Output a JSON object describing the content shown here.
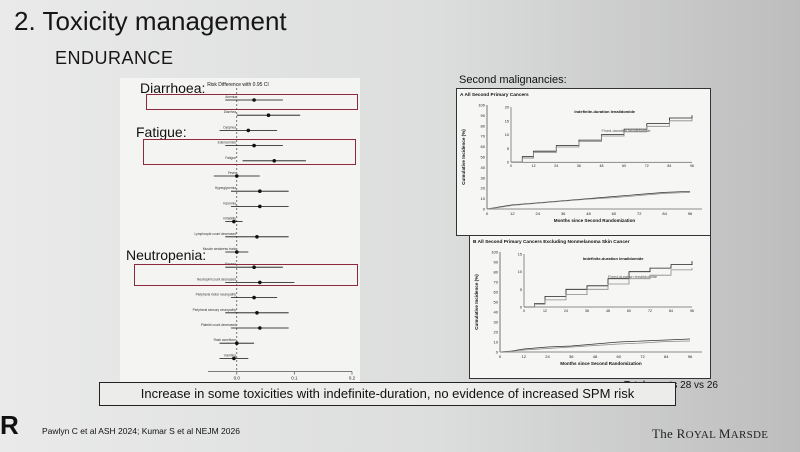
{
  "slide": {
    "title": "2. Toxicity management",
    "subtitle": "ENDURANCE",
    "conclusion": "Increase in some toxicities with indefinite-duration, no evidence of increased SPM risk",
    "references": "Pawlyn C et al ASH 2024; Kumar S et al NEJM 2026",
    "logo_letter": "R",
    "brand_pre": "The ",
    "brand_big": "R",
    "brand_small": "OYAL ",
    "brand_big2": "M",
    "brand_small2": "ARSDE"
  },
  "forest": {
    "header": "Risk Difference with 0.95 CI",
    "axis_label": "Risk Diff Indefinite-Fixed (95% CI)",
    "tick_labels": [
      "0.0",
      "0.1",
      "0.2"
    ],
    "callouts": {
      "diarrhoea": "Diarrhoea:",
      "fatigue": "Fatigue:",
      "neutropenia": "Neutropenia:"
    },
    "rows": [
      {
        "label": "Anemia",
        "est": 0.03,
        "lo": -0.02,
        "hi": 0.08
      },
      {
        "label": "Diarrhea",
        "est": 0.055,
        "lo": 0.0,
        "hi": 0.11
      },
      {
        "label": "Dyspnea",
        "est": 0.02,
        "lo": -0.03,
        "hi": 0.07
      },
      {
        "label": "Edema limbs",
        "est": 0.03,
        "lo": -0.02,
        "hi": 0.08
      },
      {
        "label": "Fatigue",
        "est": 0.065,
        "lo": 0.01,
        "hi": 0.12
      },
      {
        "label": "Fever",
        "est": 0.0,
        "lo": -0.04,
        "hi": 0.04
      },
      {
        "label": "Hyperglycemia",
        "est": 0.04,
        "lo": -0.01,
        "hi": 0.09
      },
      {
        "label": "Insomnia",
        "est": 0.04,
        "lo": -0.01,
        "hi": 0.09
      },
      {
        "label": "Irritability",
        "est": -0.005,
        "lo": -0.02,
        "hi": 0.01
      },
      {
        "label": "Lymphocyte count decreased",
        "est": 0.035,
        "lo": -0.02,
        "hi": 0.09
      },
      {
        "label": "Muscle weakness trunk",
        "est": 0.0,
        "lo": -0.02,
        "hi": 0.02
      },
      {
        "label": "Nausea",
        "est": 0.03,
        "lo": -0.02,
        "hi": 0.08
      },
      {
        "label": "Neutrophil count decreased",
        "est": 0.04,
        "lo": -0.02,
        "hi": 0.1
      },
      {
        "label": "Peripheral motor neuropathy",
        "est": 0.03,
        "lo": -0.01,
        "hi": 0.07
      },
      {
        "label": "Peripheral sensory neuropathy",
        "est": 0.035,
        "lo": -0.02,
        "hi": 0.09
      },
      {
        "label": "Platelet count decreased",
        "est": 0.04,
        "lo": -0.01,
        "hi": 0.09
      },
      {
        "label": "Rash acneiform",
        "est": 0.0,
        "lo": -0.03,
        "hi": 0.03
      },
      {
        "label": "Vomiting",
        "est": -0.005,
        "lo": -0.03,
        "hi": 0.02
      }
    ],
    "xlim": [
      -0.05,
      0.2
    ]
  },
  "spm": {
    "heading": "Second malignancies:",
    "total": "Total events 28 vs 26",
    "y_label": "Cumulative Incidence (%)",
    "x_label": "Months since Second Randomization",
    "series_indef": "Indefinite-duration lenalidomide",
    "series_fixed": "Fixed-duration lenalidomide",
    "panels": [
      {
        "title": "A  All Second Primary Cancers",
        "main_y": [
          "100",
          "90",
          "80",
          "70",
          "60",
          "50",
          "40",
          "30",
          "20",
          "10",
          "0"
        ],
        "inset_y": [
          "20",
          "15",
          "10",
          "5",
          "0"
        ],
        "x_ticks": [
          "0",
          "12",
          "24",
          "36",
          "48",
          "60",
          "72",
          "84",
          "96"
        ],
        "indef": [
          [
            0,
            0
          ],
          [
            6,
            2
          ],
          [
            12,
            4
          ],
          [
            24,
            6
          ],
          [
            36,
            8
          ],
          [
            48,
            10
          ],
          [
            60,
            12
          ],
          [
            72,
            14
          ],
          [
            84,
            16
          ],
          [
            96,
            17
          ]
        ],
        "fixed": [
          [
            0,
            0
          ],
          [
            6,
            1.5
          ],
          [
            12,
            3.5
          ],
          [
            24,
            5.5
          ],
          [
            36,
            7.5
          ],
          [
            48,
            9.5
          ],
          [
            60,
            11
          ],
          [
            72,
            13
          ],
          [
            84,
            15
          ],
          [
            96,
            16
          ]
        ]
      },
      {
        "title": "B  All Second Primary Cancers Excluding Nonmelanoma Skin Cancer",
        "main_y": [
          "100",
          "90",
          "80",
          "70",
          "60",
          "50",
          "40",
          "30",
          "20",
          "10",
          "0"
        ],
        "inset_y": [
          "15",
          "10",
          "5",
          "0"
        ],
        "x_ticks": [
          "0",
          "12",
          "24",
          "36",
          "48",
          "60",
          "72",
          "84",
          "96"
        ],
        "indef": [
          [
            0,
            0
          ],
          [
            6,
            1
          ],
          [
            12,
            3
          ],
          [
            24,
            5
          ],
          [
            36,
            6
          ],
          [
            48,
            8
          ],
          [
            60,
            10
          ],
          [
            72,
            11
          ],
          [
            84,
            12
          ],
          [
            96,
            13
          ]
        ],
        "fixed": [
          [
            0,
            0
          ],
          [
            6,
            0.8
          ],
          [
            12,
            2
          ],
          [
            24,
            3.5
          ],
          [
            36,
            5
          ],
          [
            48,
            6.5
          ],
          [
            60,
            8
          ],
          [
            72,
            9
          ],
          [
            84,
            10.5
          ],
          [
            96,
            11
          ]
        ]
      }
    ]
  }
}
